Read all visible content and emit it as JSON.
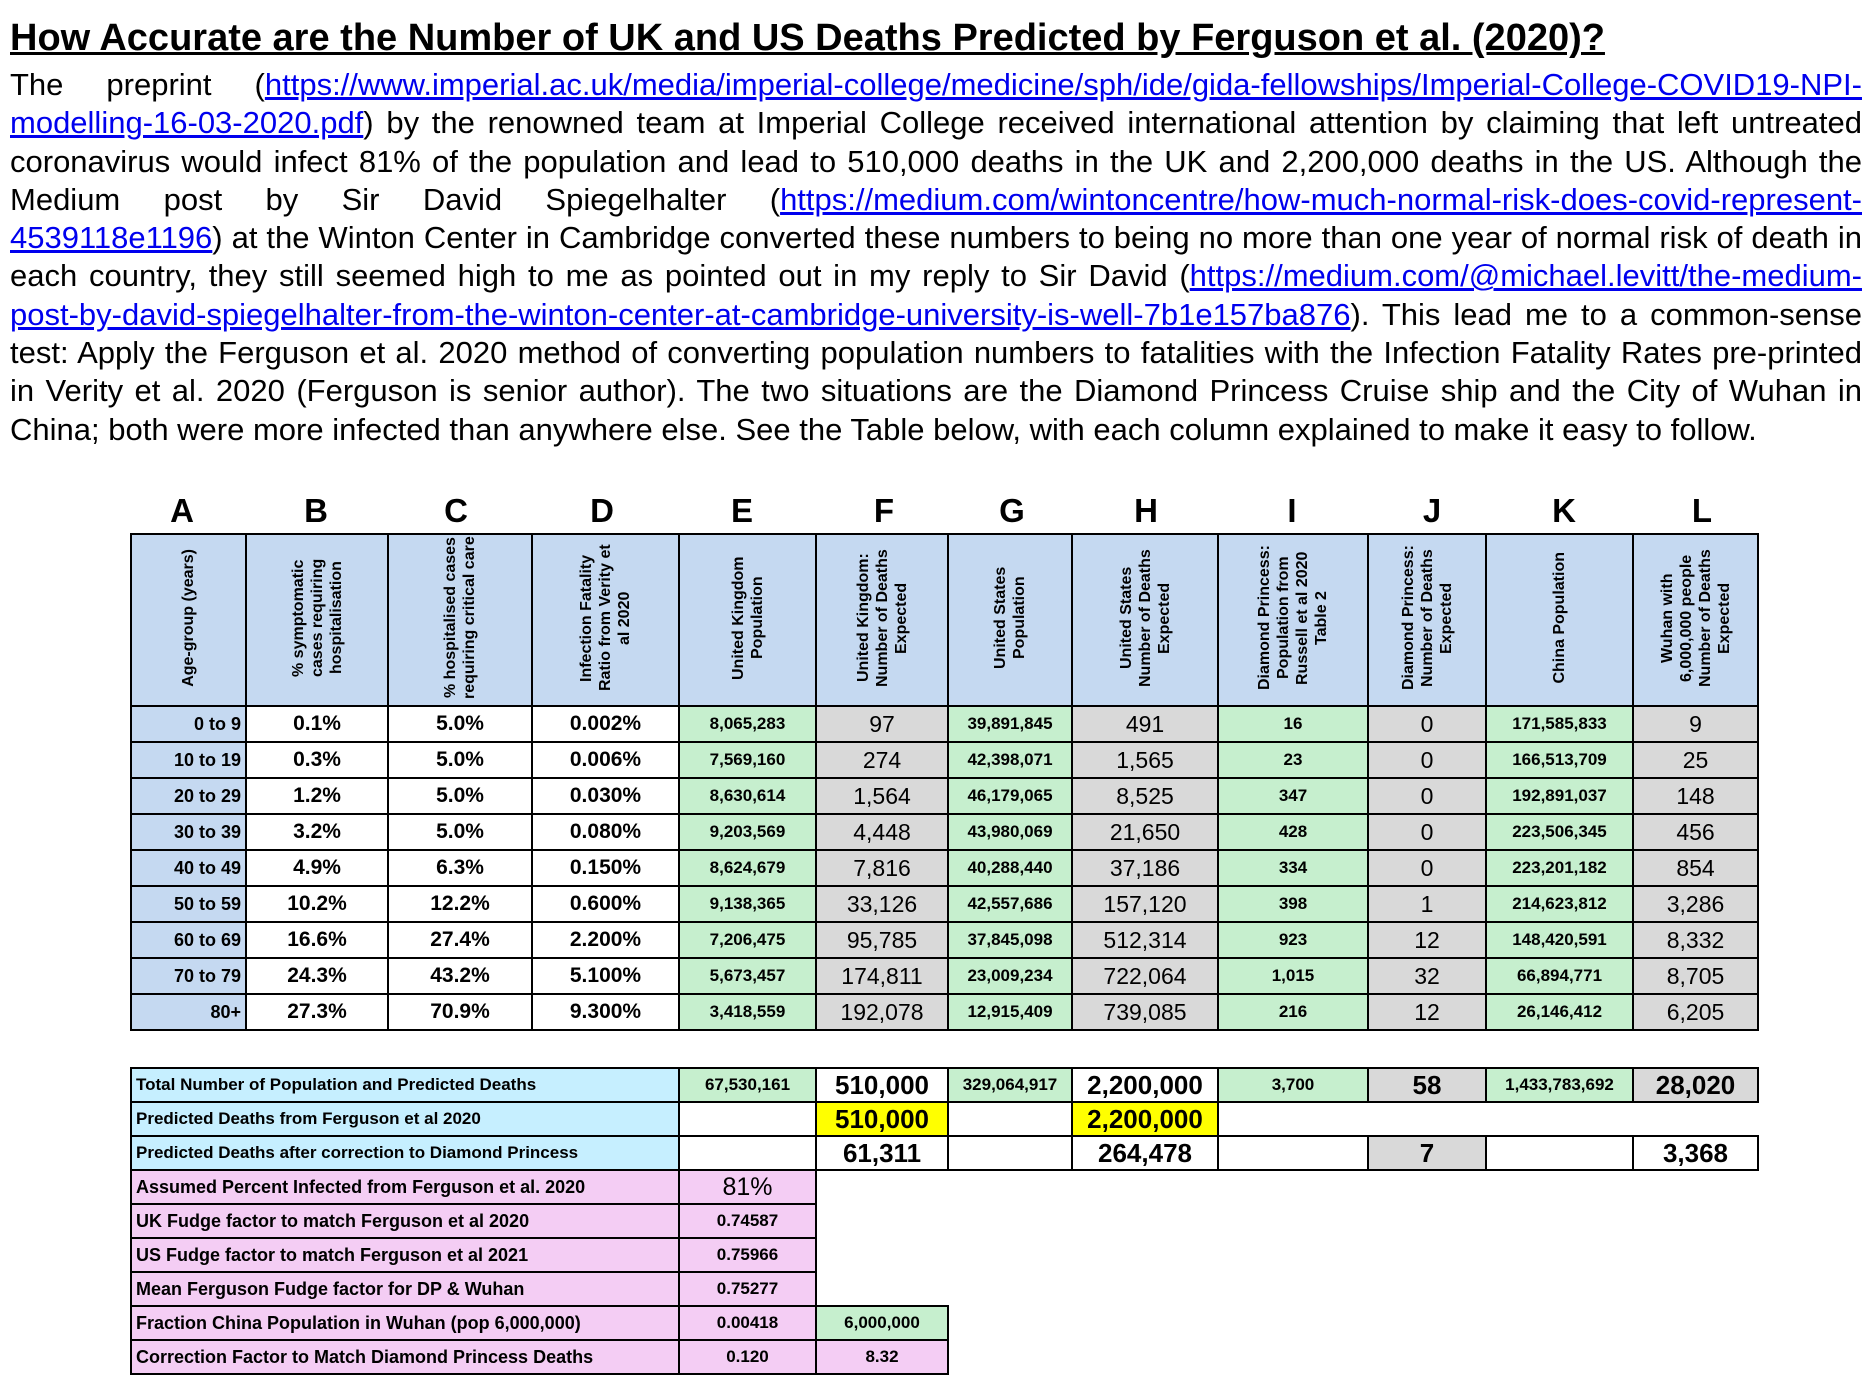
{
  "title": "How Accurate are the Number of UK and US Deaths Predicted by Ferguson et al. (2020)?",
  "paragraph": {
    "t1": "The preprint (",
    "link1": "https://www.imperial.ac.uk/media/imperial-college/medicine/sph/ide/gida-fellowships/Imperial-College-COVID19-NPI-modelling-16-03-2020.pdf",
    "t2": ") by the renowned team at Imperial College received international attention by claiming that left untreated coronavirus would infect 81% of the population and lead to 510,000 deaths in the UK and 2,200,000 deaths in the US.  Although the Medium post by Sir David Spiegelhalter (",
    "link2": "https://medium.com/wintoncentre/how-much-normal-risk-does-covid-represent-4539118e1196",
    "t3": ") at the Winton Center in Cambridge converted these numbers to being no more than one year of normal risk of death in each country, they still seemed high to me as pointed out in my reply to Sir David (",
    "link3": "https://medium.com/@michael.levitt/the-medium-post-by-david-spiegelhalter-from-the-winton-center-at-cambridge-university-is-well-7b1e157ba876",
    "t4": ").  This lead me to a common-sense test:  Apply the Ferguson et al. 2020 method of converting population numbers to fatalities with the Infection Fatality Rates pre-printed in Verity et al. 2020 (Ferguson is senior author).  The two situations are the Diamond Princess Cruise ship and the City of Wuhan in China; both were more infected than anywhere else.  See the Table below, with each column explained to make it easy to follow."
  },
  "column_letters": [
    "A",
    "B",
    "C",
    "D",
    "E",
    "F",
    "G",
    "H",
    "I",
    "J",
    "K",
    "L"
  ],
  "headers": [
    "Age-group (years)",
    "% symptomatic cases requiring hospitalisation",
    "% hospitalised cases requiring critical care",
    "Infection Fatality Ratio from Verity et al 2020",
    "United Kingdom Population",
    "United Kingdom: Number of Deaths Expected",
    "United States Population",
    "United States Number of Deaths Expected",
    "Diamond Princess: Population from Russell et al 2020 Table 2",
    "Diamond Princess: Number of Deaths Expected",
    "China Population",
    "Wuhan with 6,000,000 people Number of Deaths Expected"
  ],
  "rows": [
    [
      "0 to 9",
      "0.1%",
      "5.0%",
      "0.002%",
      "8,065,283",
      "97",
      "39,891,845",
      "491",
      "16",
      "0",
      "171,585,833",
      "9"
    ],
    [
      "10 to 19",
      "0.3%",
      "5.0%",
      "0.006%",
      "7,569,160",
      "274",
      "42,398,071",
      "1,565",
      "23",
      "0",
      "166,513,709",
      "25"
    ],
    [
      "20 to 29",
      "1.2%",
      "5.0%",
      "0.030%",
      "8,630,614",
      "1,564",
      "46,179,065",
      "8,525",
      "347",
      "0",
      "192,891,037",
      "148"
    ],
    [
      "30 to 39",
      "3.2%",
      "5.0%",
      "0.080%",
      "9,203,569",
      "4,448",
      "43,980,069",
      "21,650",
      "428",
      "0",
      "223,506,345",
      "456"
    ],
    [
      "40 to 49",
      "4.9%",
      "6.3%",
      "0.150%",
      "8,624,679",
      "7,816",
      "40,288,440",
      "37,186",
      "334",
      "0",
      "223,201,182",
      "854"
    ],
    [
      "50 to 59",
      "10.2%",
      "12.2%",
      "0.600%",
      "9,138,365",
      "33,126",
      "42,557,686",
      "157,120",
      "398",
      "1",
      "214,623,812",
      "3,286"
    ],
    [
      "60 to 69",
      "16.6%",
      "27.4%",
      "2.200%",
      "7,206,475",
      "95,785",
      "37,845,098",
      "512,314",
      "923",
      "12",
      "148,420,591",
      "8,332"
    ],
    [
      "70 to 79",
      "24.3%",
      "43.2%",
      "5.100%",
      "5,673,457",
      "174,811",
      "23,009,234",
      "722,064",
      "1,015",
      "32",
      "66,894,771",
      "8,705"
    ],
    [
      "80+",
      "27.3%",
      "70.9%",
      "9.300%",
      "3,418,559",
      "192,078",
      "12,915,409",
      "739,085",
      "216",
      "12",
      "26,146,412",
      "6,205"
    ]
  ],
  "summary": {
    "total_label": "Total Number of Population and Predicted Deaths",
    "total": [
      "67,530,161",
      "510,000",
      "329,064,917",
      "2,200,000",
      "3,700",
      "58",
      "1,433,783,692",
      "28,020"
    ],
    "ferguson_label": "Predicted Deaths from Ferguson et al 2020",
    "ferguson_uk": "510,000",
    "ferguson_us": "2,200,000",
    "corrected_label": "Predicted Deaths after correction to Diamond Princess",
    "corrected_uk": "61,311",
    "corrected_us": "264,478",
    "corrected_dp": "7",
    "corrected_wuhan": "3,368",
    "params": [
      {
        "label": "Assumed Percent Infected from Ferguson et al. 2020",
        "value": "81%"
      },
      {
        "label": "UK Fudge factor  to match Ferguson et al 2020",
        "value": "0.74587"
      },
      {
        "label": "US Fudge factor  to match Ferguson et al 2021",
        "value": "0.75966"
      },
      {
        "label": "Mean Ferguson Fudge factor for DP & Wuhan",
        "value": "0.75277"
      },
      {
        "label": "Fraction China Population in Wuhan (pop 6,000,000)",
        "value": "0.00418",
        "extra": "6,000,000"
      },
      {
        "label": "Correction Factor to Match Diamond Princess Deaths",
        "value": "0.120",
        "extra": "8.32"
      }
    ]
  },
  "colors": {
    "header_blue": "#c5d9f1",
    "green": "#c6efce",
    "gray": "#d9d9d9",
    "yellow": "#ffff00",
    "pink": "#f4cdf4",
    "light_blue": "#c6efff"
  }
}
